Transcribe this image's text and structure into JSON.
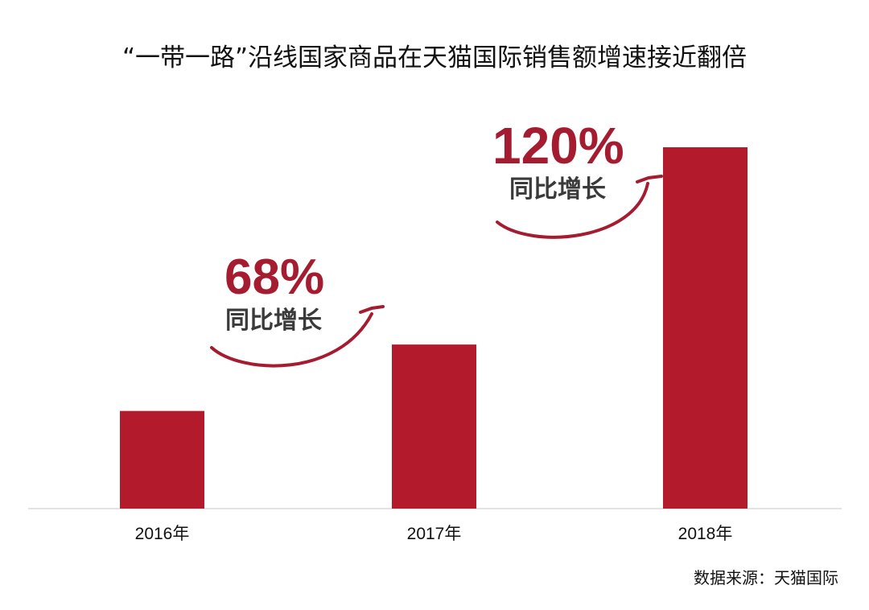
{
  "chart_data": {
    "type": "bar",
    "title": "“一带一路”沿线国家商品在天猫国际销售额增速接近翻倍",
    "categories": [
      "2016年",
      "2017年",
      "2018年"
    ],
    "values": [
      100,
      168,
      370
    ],
    "annotations": [
      {
        "between": [
          "2016年",
          "2017年"
        ],
        "value": "68%",
        "label": "同比增长"
      },
      {
        "between": [
          "2017年",
          "2018年"
        ],
        "value": "120%",
        "label": "同比增长"
      }
    ],
    "grid": false,
    "bar_color": "#B31A2C",
    "annotation_color": "#A51C30",
    "source": "数据来源：天猫国际"
  }
}
